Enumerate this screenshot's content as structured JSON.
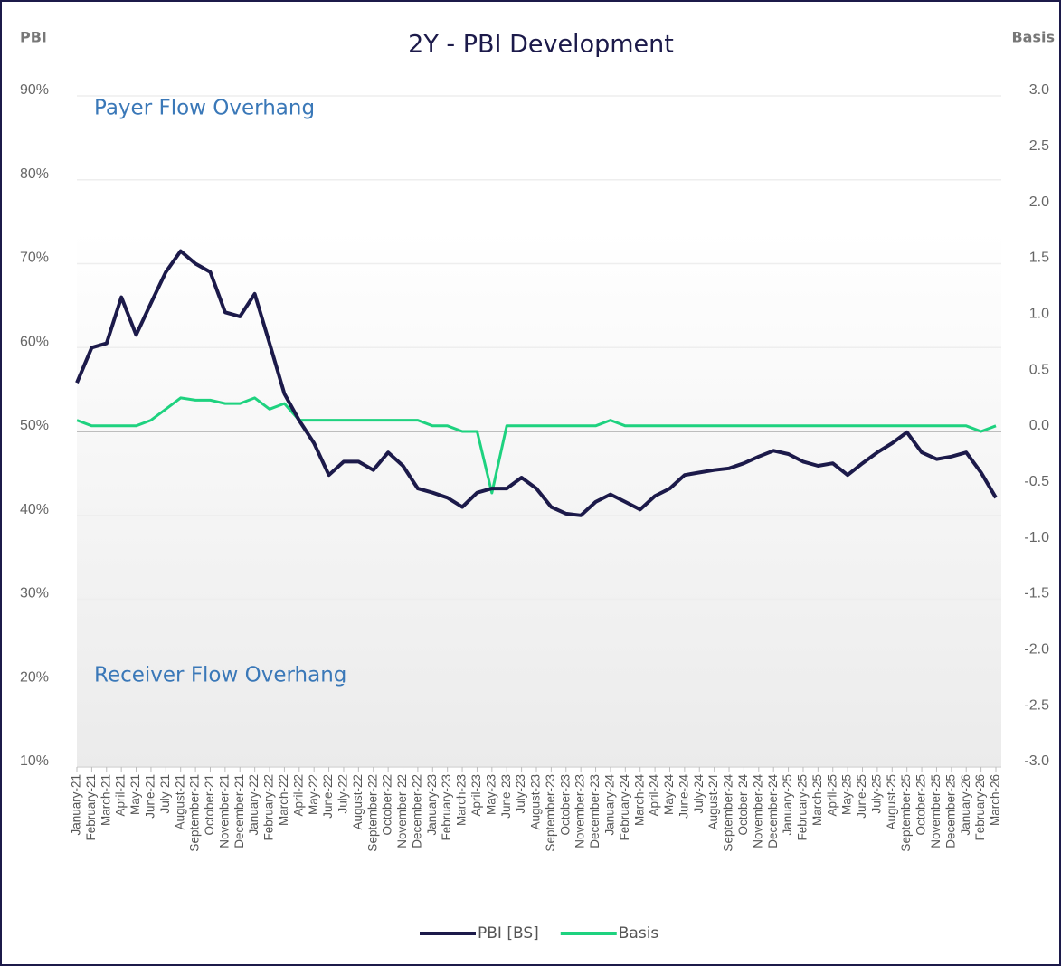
{
  "chart_data": {
    "type": "line",
    "title": "2Y - PBI Development",
    "y_label": "PBI",
    "y2_label": "Basis",
    "annotations": [
      "Payer Flow Overhang",
      "Receiver Flow Overhang"
    ],
    "categories": [
      "January-21",
      "February-21",
      "March-21",
      "April-21",
      "May-21",
      "June-21",
      "July-21",
      "August-21",
      "September-21",
      "October-21",
      "November-21",
      "December-21",
      "January-22",
      "February-22",
      "March-22",
      "April-22",
      "May-22",
      "June-22",
      "July-22",
      "August-22",
      "September-22",
      "October-22",
      "November-22",
      "December-22",
      "January-23",
      "February-23",
      "March-23",
      "April-23",
      "May-23",
      "June-23",
      "July-23",
      "August-23",
      "September-23",
      "October-23",
      "November-23",
      "December-23",
      "January-24",
      "February-24",
      "March-24",
      "April-24",
      "May-24",
      "June-24",
      "July-24",
      "August-24",
      "September-24",
      "October-24",
      "November-24",
      "December-24",
      "January-25",
      "February-25",
      "March-25",
      "April-25",
      "May-25",
      "June-25",
      "July-25",
      "August-25",
      "September-25",
      "October-25",
      "November-25",
      "December-25",
      "January-26",
      "February-26",
      "March-26"
    ],
    "series": [
      {
        "name": "PBI [BS]",
        "color": "#1c1a4a",
        "values": [
          55.8,
          60,
          60.5,
          66,
          61.5,
          65.3,
          69,
          71.5,
          70,
          69,
          64.2,
          63.7,
          66.4,
          60.5,
          54.5,
          51.3,
          48.6,
          44.8,
          46.4,
          46.4,
          45.4,
          47.5,
          45.9,
          43.2,
          42.7,
          42.1,
          41,
          42.7,
          43.2,
          43.2,
          44.5,
          43.2,
          41,
          40.2,
          40,
          41.6,
          42.5,
          41.6,
          40.7,
          42.3,
          43.2,
          44.8,
          45.1,
          45.4,
          45.6,
          46.2,
          47,
          47.7,
          47.3,
          46.4,
          45.9,
          46.2,
          44.8,
          46.2,
          47.5,
          48.6,
          49.9,
          47.5,
          46.7,
          47,
          47.5,
          45.1,
          42.1
        ]
      },
      {
        "name": "Basis",
        "color": "#1ed27f",
        "axis": "y2",
        "values": [
          0.1,
          0.05,
          0.05,
          0.05,
          0.05,
          0.1,
          0.2,
          0.3,
          0.28,
          0.28,
          0.25,
          0.25,
          0.3,
          0.2,
          0.25,
          0.1,
          0.1,
          0.1,
          0.1,
          0.1,
          0.1,
          0.1,
          0.1,
          0.1,
          0.05,
          0.05,
          0,
          0,
          -0.55,
          0.05,
          0.05,
          0.05,
          0.05,
          0.05,
          0.05,
          0.05,
          0.1,
          0.05,
          0.05,
          0.05,
          0.05,
          0.05,
          0.05,
          0.05,
          0.05,
          0.05,
          0.05,
          0.05,
          0.05,
          0.05,
          0.05,
          0.05,
          0.05,
          0.05,
          0.05,
          0.05,
          0.05,
          0.05,
          0.05,
          0.05,
          0.05,
          0,
          0.05
        ]
      }
    ],
    "ylim": [
      10,
      90
    ],
    "yticks": [
      {
        "value": 10,
        "label": "10%"
      },
      {
        "value": 20,
        "label": "20%"
      },
      {
        "value": 30,
        "label": "30%"
      },
      {
        "value": 40,
        "label": "40%"
      },
      {
        "value": 50,
        "label": "50%"
      },
      {
        "value": 60,
        "label": "60%"
      },
      {
        "value": 70,
        "label": "70%"
      },
      {
        "value": 80,
        "label": "80%"
      },
      {
        "value": 90,
        "label": "90%"
      }
    ],
    "y2lim": [
      -3,
      3
    ],
    "y2ticks": [
      {
        "value": -3,
        "label": "-3.0"
      },
      -2.5,
      {
        "value": -2,
        "label": "-2.0"
      },
      -1.5,
      {
        "value": -1,
        "label": "-1.0"
      },
      -0.5,
      {
        "value": 0,
        "label": "0.0"
      },
      0.5,
      {
        "value": 1,
        "label": "1.0"
      },
      1.5,
      {
        "value": 2,
        "label": "2.0"
      },
      2.5,
      {
        "value": 3,
        "label": "3.0"
      }
    ],
    "grid": true,
    "legend": "bottom"
  }
}
